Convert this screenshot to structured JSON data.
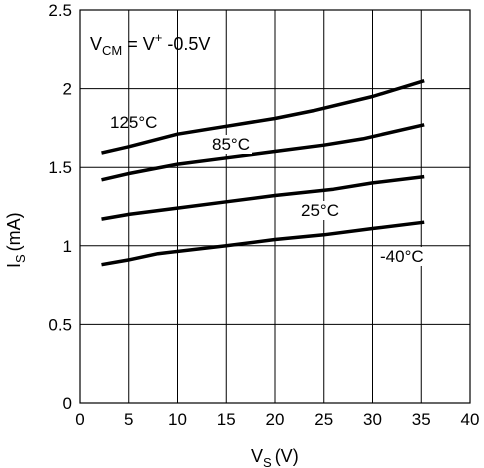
{
  "chart_data": {
    "type": "line",
    "xlabel": {
      "main": "V",
      "sub": "S",
      "unit": "(V)"
    },
    "ylabel": {
      "main": "I",
      "sub": "S",
      "unit": "(mA)"
    },
    "xlim": [
      0,
      40
    ],
    "ylim": [
      0,
      2.5
    ],
    "x_ticks": [
      0,
      5,
      10,
      15,
      20,
      25,
      30,
      35,
      40
    ],
    "y_ticks": [
      0,
      0.5,
      1,
      1.5,
      2,
      2.5
    ],
    "x_tick_labels": [
      "0",
      "5",
      "10",
      "15",
      "20",
      "25",
      "30",
      "35",
      "40"
    ],
    "y_tick_labels": [
      "0",
      "0.5",
      "1",
      "1.5",
      "2",
      "2.5"
    ],
    "grid": true,
    "annotation": {
      "v": "V",
      "v_sub": "CM",
      "mid": " = V",
      "sup": "+",
      "tail": " -0.5V"
    },
    "series": [
      {
        "name": "125°C",
        "x": [
          2.2,
          5,
          10,
          15,
          20,
          24,
          30,
          35.3
        ],
        "y": [
          1.59,
          1.63,
          1.71,
          1.76,
          1.81,
          1.86,
          1.95,
          2.05
        ]
      },
      {
        "name": "85°C",
        "x": [
          2.2,
          5,
          10,
          15,
          20,
          25,
          29,
          35.3
        ],
        "y": [
          1.42,
          1.46,
          1.52,
          1.56,
          1.6,
          1.64,
          1.68,
          1.77
        ]
      },
      {
        "name": "25°C",
        "x": [
          2.2,
          5,
          10,
          15,
          20,
          26,
          30,
          35.3
        ],
        "y": [
          1.17,
          1.2,
          1.24,
          1.28,
          1.32,
          1.36,
          1.4,
          1.44
        ]
      },
      {
        "name": "-40°C",
        "x": [
          2.2,
          5,
          8,
          15,
          20,
          25,
          30,
          35.3
        ],
        "y": [
          0.88,
          0.91,
          0.95,
          1.0,
          1.04,
          1.07,
          1.11,
          1.15
        ]
      }
    ]
  }
}
